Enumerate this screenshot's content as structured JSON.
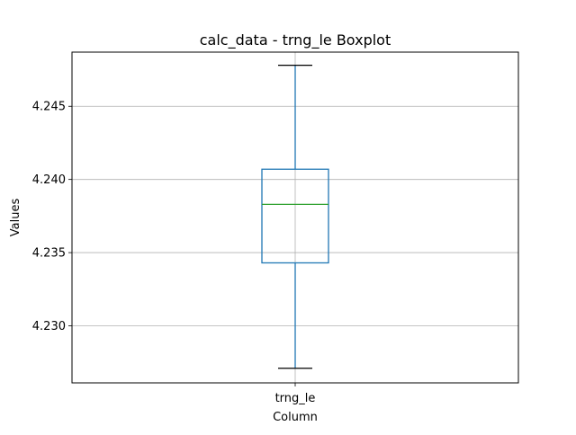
{
  "chart_data": {
    "type": "boxplot",
    "title": "calc_data - trng_le Boxplot",
    "xlabel": "Column",
    "ylabel": "Values",
    "categories": [
      "trng_le"
    ],
    "boxes": [
      {
        "category": "trng_le",
        "whisker_low": 4.2271,
        "q1": 4.2343,
        "median": 4.2383,
        "q3": 4.2407,
        "whisker_high": 4.2478
      }
    ],
    "ylim": [
      4.2261,
      4.2487
    ],
    "yticks": [
      4.23,
      4.235,
      4.24,
      4.245
    ],
    "ytick_labels": [
      "4.230",
      "4.235",
      "4.240",
      "4.245"
    ],
    "grid": true,
    "colors": {
      "box": "#1f77b4",
      "median": "#2ca02c",
      "whisker": "#1f77b4",
      "cap": "#000000",
      "grid": "#b0b0b0"
    }
  }
}
